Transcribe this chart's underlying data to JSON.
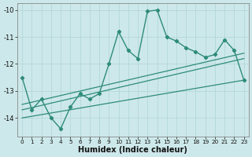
{
  "x": [
    0,
    1,
    2,
    3,
    4,
    5,
    6,
    7,
    8,
    9,
    10,
    11,
    12,
    13,
    14,
    15,
    16,
    17,
    18,
    19,
    20,
    21,
    22,
    23
  ],
  "y_main": [
    -12.5,
    -13.7,
    -13.3,
    -14.0,
    -14.4,
    -13.6,
    -13.1,
    -13.3,
    -13.1,
    -12.0,
    -10.8,
    -11.5,
    -11.8,
    -10.05,
    -10.0,
    -11.0,
    -11.15,
    -11.4,
    -11.55,
    -11.75,
    -11.65,
    -11.1,
    -11.5,
    -12.6
  ],
  "straight_lines": [
    {
      "x0": 0,
      "y0": -13.5,
      "x1": 23,
      "y1": -11.6
    },
    {
      "x0": 0,
      "y0": -13.7,
      "x1": 23,
      "y1": -11.8
    },
    {
      "x0": 0,
      "y0": -14.0,
      "x1": 23,
      "y1": -12.6
    }
  ],
  "line_color": "#2e8b7a",
  "bg_color": "#cde8ea",
  "grid_color": "#aed4d6",
  "xlabel": "Humidex (Indice chaleur)",
  "ylim": [
    -14.7,
    -9.75
  ],
  "xlim": [
    -0.5,
    23.5
  ],
  "yticks": [
    -14,
    -13,
    -12,
    -11,
    -10
  ],
  "xticks": [
    0,
    1,
    2,
    3,
    4,
    5,
    6,
    7,
    8,
    9,
    10,
    11,
    12,
    13,
    14,
    15,
    16,
    17,
    18,
    19,
    20,
    21,
    22,
    23
  ]
}
